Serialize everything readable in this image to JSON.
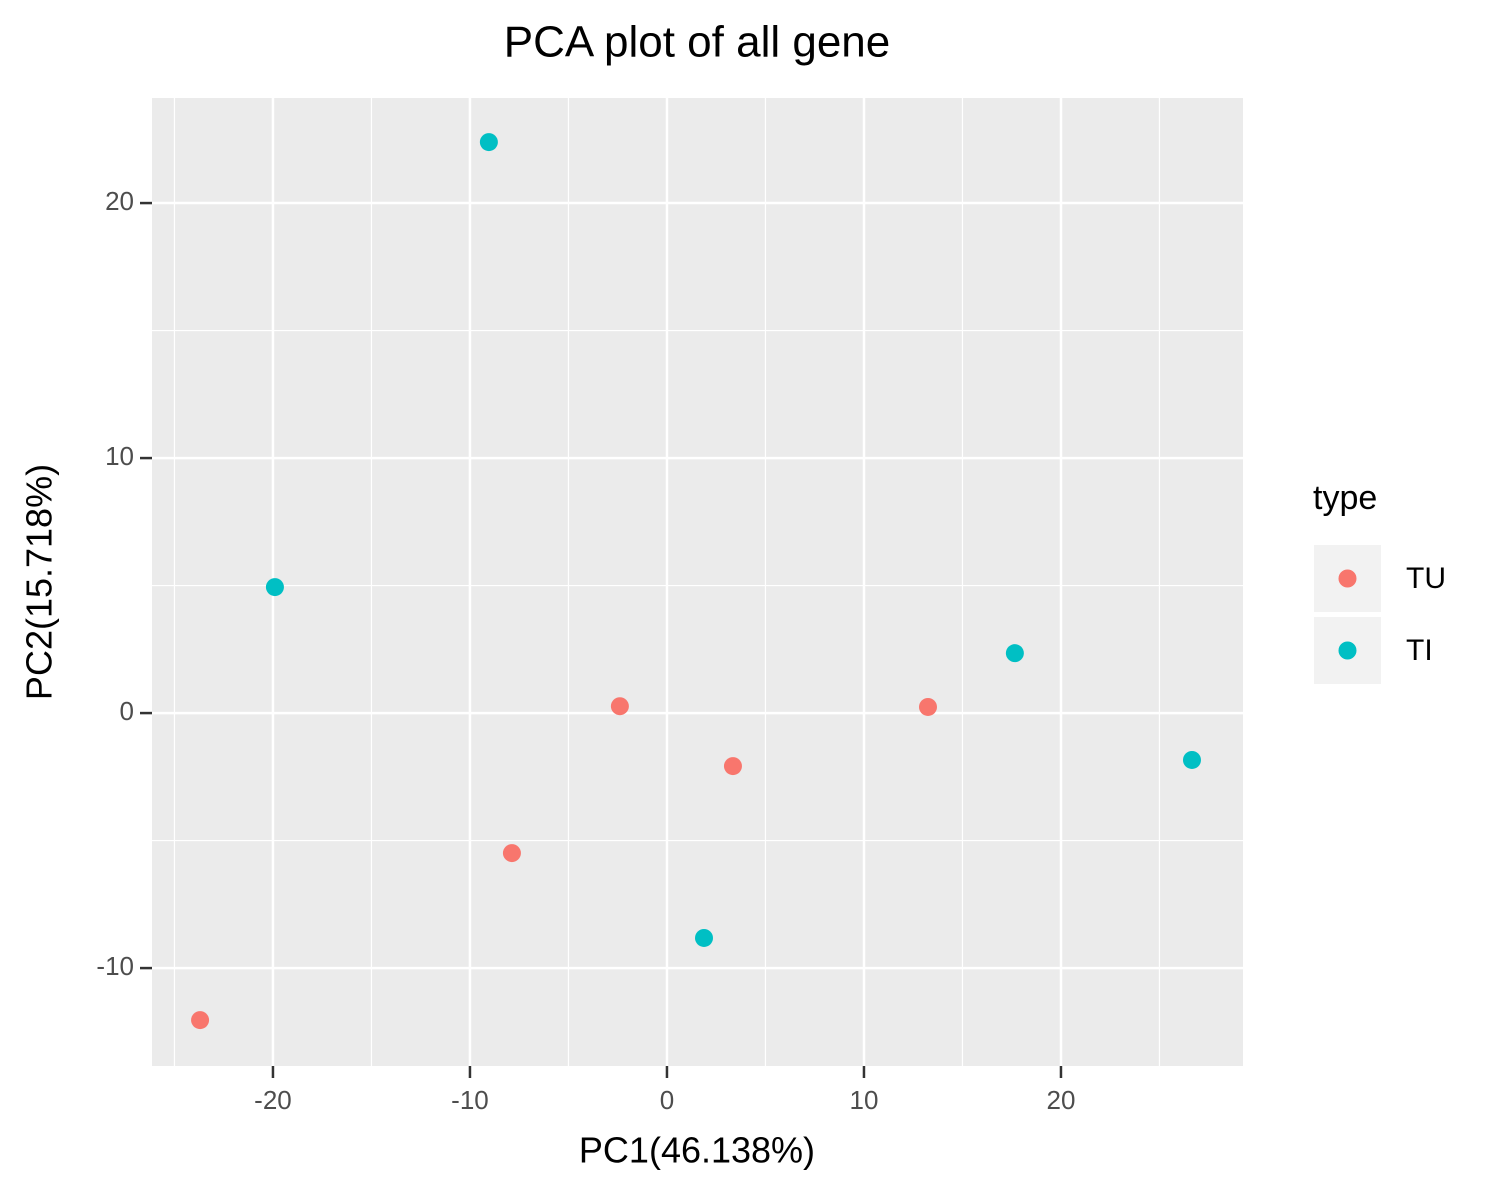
{
  "chart_data": {
    "type": "scatter",
    "title": "PCA plot of all gene",
    "x_label": "PC1(46.138%)",
    "y_label": "PC2(15.718%)",
    "legend_title": "type",
    "legend_position": "right",
    "grid": true,
    "xlim": [
      -26.14,
      29.24
    ],
    "ylim": [
      -13.84,
      24.12
    ],
    "xticks": [
      -20,
      -10,
      0,
      10,
      20
    ],
    "yticks": [
      -10,
      0,
      10,
      20
    ],
    "series": [
      {
        "name": "TU",
        "color": "#F8766D",
        "x": [
          -23.7,
          -7.87,
          -2.39,
          3.35,
          13.25
        ],
        "values": [
          -12.04,
          -5.49,
          0.27,
          -2.08,
          0.24
        ]
      },
      {
        "name": "TI",
        "color": "#00BFC4",
        "x": [
          -9.04,
          -19.9,
          1.88,
          17.66,
          26.65
        ],
        "values": [
          22.39,
          4.94,
          -8.82,
          2.35,
          -1.84
        ]
      }
    ]
  }
}
